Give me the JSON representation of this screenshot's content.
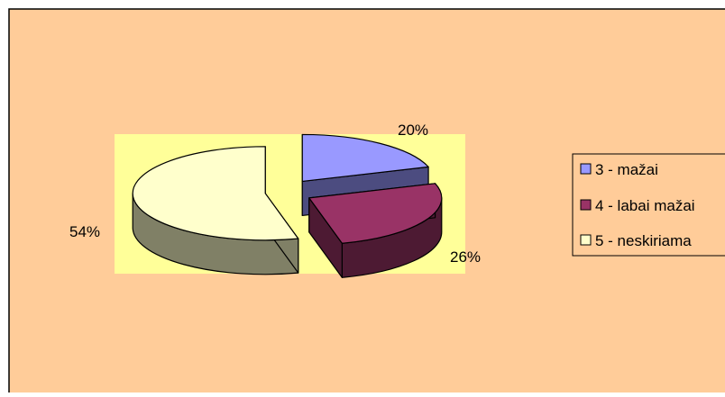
{
  "chart_data": {
    "type": "pie",
    "style": "3d-exploded",
    "slices": [
      {
        "label": "3 - mažai",
        "value": 20,
        "value_label": "20%",
        "color": "#9999ff",
        "side_color": "#4c4c80"
      },
      {
        "label": "4 - labai mažai",
        "value": 26,
        "value_label": "26%",
        "color": "#993366",
        "side_color": "#4d1a33"
      },
      {
        "label": "5 - neskiriama",
        "value": 54,
        "value_label": "54%",
        "color": "#ffffcc",
        "side_color": "#808066"
      }
    ],
    "legend_position": "right",
    "colors": {
      "chart_area": "#ffcc99",
      "plot_area": "#ffff99",
      "border": "#000000"
    }
  }
}
